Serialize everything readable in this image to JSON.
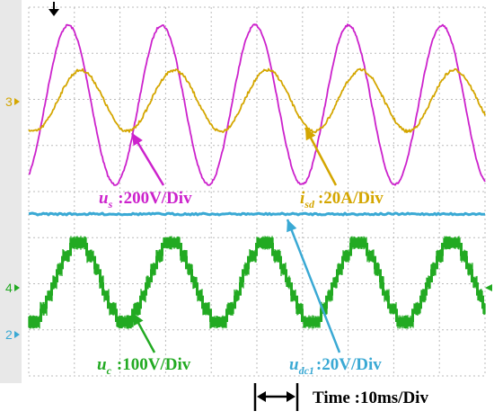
{
  "chart_data": {
    "type": "line",
    "time_base": "Time :10ms/Div",
    "channel_markers": [
      "3",
      "4",
      "2"
    ],
    "series": [
      {
        "name": "u_s",
        "symbol": "u",
        "subscript": "s",
        "scale": ":200V/Div",
        "color": "#cc22cc",
        "kind": "sine",
        "period_px": 104,
        "peak_px": [
          76,
          28
        ],
        "trough_px": [
          125,
          205
        ],
        "noise": 1.2
      },
      {
        "name": "i_sd",
        "symbol": "i",
        "subscript": "sd",
        "scale": ":20A/Div",
        "color": "#d4a600",
        "kind": "sine",
        "period_px": 104,
        "peak_px": [
          90,
          78
        ],
        "trough_px": [
          140,
          146
        ],
        "noise": 1.6
      },
      {
        "name": "u_dc1",
        "symbol": "u",
        "subscript": "dc1",
        "scale": ":20V/Div",
        "color": "#3aa9d4",
        "kind": "flat",
        "level_px": 238,
        "noise": 1.0
      },
      {
        "name": "u_c",
        "symbol": "u",
        "subscript": "c",
        "scale": ":100V/Div",
        "color": "#22aa22",
        "kind": "staircase",
        "period_px": 104,
        "peak_px": [
          87,
          270
        ],
        "trough_px": [
          140,
          358
        ],
        "band_px": 14
      }
    ]
  }
}
